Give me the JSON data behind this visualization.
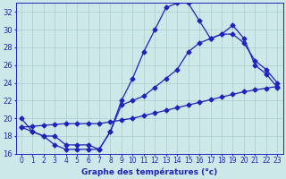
{
  "xlabel": "Graphe des températures (°c)",
  "hours": [
    0,
    1,
    2,
    3,
    4,
    5,
    6,
    7,
    8,
    9,
    10,
    11,
    12,
    13,
    14,
    15,
    16,
    17,
    18,
    19,
    20,
    21,
    22,
    23
  ],
  "main_temps": [
    20.0,
    18.5,
    18.0,
    17.0,
    16.5,
    16.5,
    16.5,
    16.5,
    18.5,
    22.0,
    24.5,
    27.5,
    30.0,
    32.5,
    33.0,
    33.0,
    31.0,
    29.0,
    29.5,
    30.5,
    29.0,
    26.0,
    25.0,
    23.5
  ],
  "mid_line": [
    19.0,
    18.5,
    18.0,
    18.0,
    17.0,
    17.0,
    17.0,
    16.5,
    18.5,
    21.5,
    22.0,
    22.5,
    23.5,
    24.5,
    25.5,
    27.5,
    28.5,
    29.0,
    29.5,
    29.5,
    28.5,
    26.5,
    25.5,
    24.0
  ],
  "low_line": [
    19.0,
    19.1,
    19.2,
    19.3,
    19.4,
    19.4,
    19.4,
    19.4,
    19.6,
    19.8,
    20.0,
    20.3,
    20.6,
    20.9,
    21.2,
    21.5,
    21.8,
    22.1,
    22.4,
    22.7,
    23.0,
    23.2,
    23.4,
    23.6
  ],
  "ylim": [
    16,
    33
  ],
  "yticks": [
    16,
    18,
    20,
    22,
    24,
    26,
    28,
    30,
    32
  ],
  "xlim": [
    -0.5,
    23.5
  ],
  "bg_color": "#cce8e8",
  "grid_color": "#aacccc",
  "line_color": "#2222bb",
  "line_width": 0.9,
  "marker": "D",
  "marker_size": 2.5,
  "xlabel_fontsize": 6.5,
  "tick_fontsize": 5.5
}
